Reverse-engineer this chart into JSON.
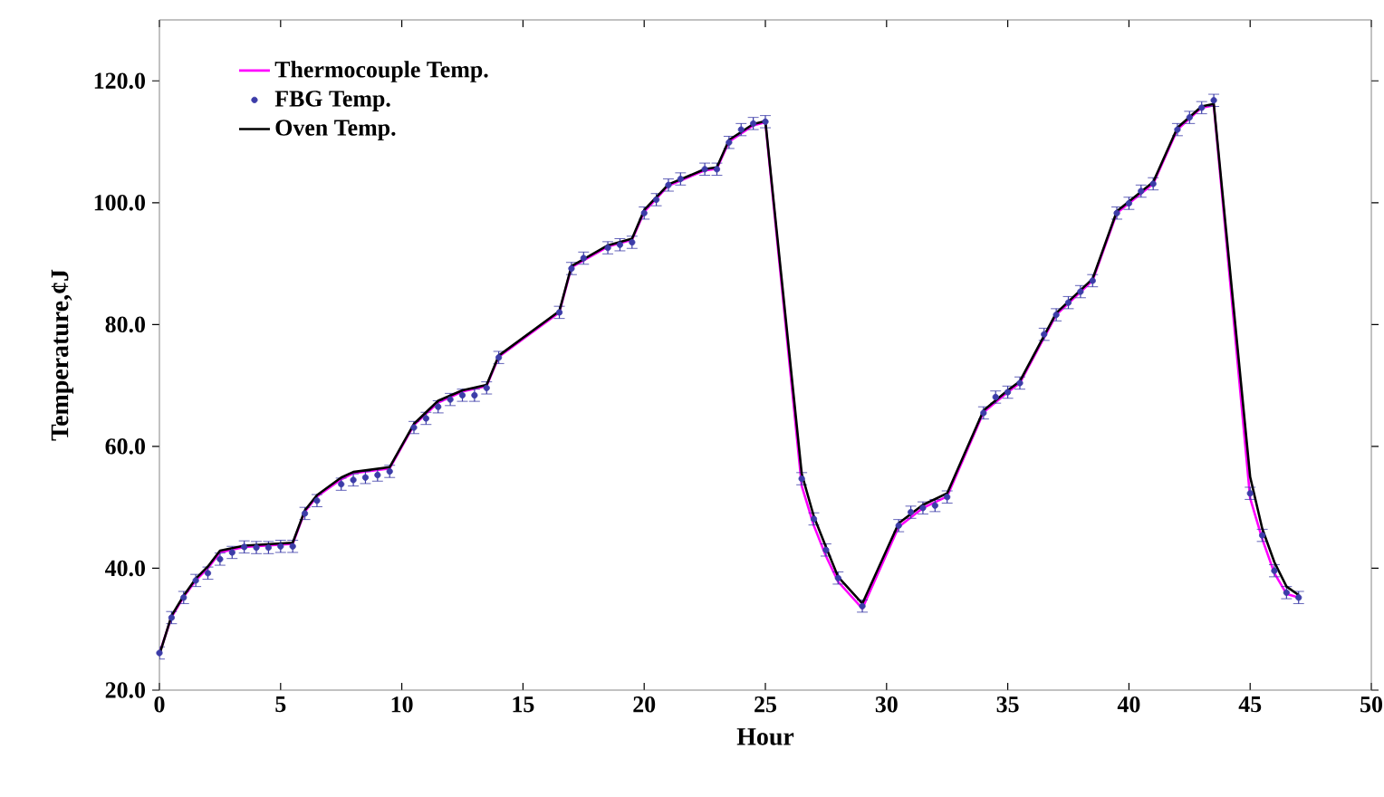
{
  "chart_data": {
    "type": "line",
    "xlabel": "Hour",
    "ylabel": "Temperature,¢J",
    "xlim": [
      0,
      50
    ],
    "ylim": [
      20,
      130
    ],
    "xticks": [
      0,
      5,
      10,
      15,
      20,
      25,
      30,
      35,
      40,
      45,
      50
    ],
    "yticks": [
      {
        "value": 20,
        "label": "20.0"
      },
      {
        "value": 40,
        "label": "40.0"
      },
      {
        "value": 60,
        "label": "60.0"
      },
      {
        "value": 80,
        "label": "80.0"
      },
      {
        "value": 100,
        "label": "100.0"
      },
      {
        "value": 120,
        "label": "120.0"
      }
    ],
    "grid": false,
    "legend": "top left",
    "series": [
      {
        "name": "Thermocouple Temp.",
        "color": "#ff00ff",
        "line_style": "solid",
        "marker": "none",
        "x": [
          0,
          0.5,
          1,
          1.5,
          2,
          2.5,
          3.5,
          5.5,
          6,
          6.5,
          7.5,
          8,
          9.5,
          10.5,
          11.5,
          12.5,
          13.5,
          14,
          16.5,
          17,
          18.5,
          19.5,
          20,
          21,
          22.5,
          23,
          23.5,
          24.5,
          25,
          26.5,
          27,
          27.5,
          28,
          29,
          30.5,
          31.5,
          32.5,
          34,
          35,
          35.5,
          37,
          38.5,
          39.5,
          41,
          42,
          43,
          43.5,
          45,
          45.5,
          46,
          46.5,
          47
        ],
        "values": [
          26.0,
          32.0,
          35.3,
          38.0,
          40.0,
          42.6,
          43.5,
          44.0,
          49.3,
          51.8,
          54.6,
          55.6,
          56.4,
          63.5,
          67.2,
          69.0,
          69.9,
          74.7,
          82.0,
          89.4,
          92.8,
          93.9,
          98.5,
          102.8,
          105.3,
          105.6,
          110.0,
          112.7,
          113.2,
          53.5,
          47.0,
          42.0,
          37.8,
          33.4,
          46.8,
          49.9,
          51.8,
          65.6,
          68.9,
          70.4,
          81.6,
          87.2,
          98.3,
          103.1,
          112.0,
          115.6,
          116.0,
          51.5,
          44.8,
          39.2,
          35.8,
          35.2
        ]
      },
      {
        "name": "FBG Temp.",
        "type": "scatter",
        "color": "#3c3ca8",
        "marker": "circle",
        "x": [
          0,
          0.5,
          1,
          1.5,
          2,
          2.5,
          3,
          3.5,
          4,
          4.5,
          5,
          5.5,
          6,
          6.5,
          7.5,
          8,
          8.5,
          9,
          9.5,
          10.5,
          11,
          11.5,
          12,
          12.5,
          13,
          13.5,
          14,
          16.5,
          17,
          17.5,
          18.5,
          19,
          19.5,
          20,
          20.5,
          21,
          21.5,
          22.5,
          23,
          23.5,
          24,
          24.5,
          25,
          26.5,
          27,
          27.5,
          28,
          29,
          30.5,
          31,
          31.5,
          32,
          32.5,
          34,
          34.5,
          35,
          35.5,
          36.5,
          37,
          37.5,
          38,
          38.5,
          39.5,
          40,
          40.5,
          41,
          42,
          42.5,
          43,
          43.5,
          45,
          45.5,
          46,
          46.5,
          47
        ],
        "values": [
          26.1,
          31.9,
          35.2,
          38.0,
          39.2,
          41.5,
          42.6,
          43.5,
          43.4,
          43.4,
          43.6,
          43.6,
          49.0,
          51.1,
          53.8,
          54.5,
          54.9,
          55.3,
          55.9,
          63.1,
          64.6,
          66.5,
          67.7,
          68.4,
          68.4,
          69.6,
          74.6,
          82.0,
          89.2,
          90.9,
          92.6,
          93.1,
          93.5,
          98.3,
          100.5,
          102.9,
          103.9,
          105.5,
          105.5,
          109.9,
          112.0,
          113.0,
          113.3,
          54.7,
          48.1,
          43.0,
          38.4,
          33.8,
          47.0,
          49.2,
          49.9,
          50.3,
          51.7,
          65.5,
          68.1,
          68.9,
          70.4,
          78.4,
          81.6,
          83.6,
          85.4,
          87.2,
          98.3,
          99.9,
          101.9,
          103.1,
          112.0,
          114.0,
          115.6,
          116.8,
          52.3,
          45.4,
          39.6,
          36.0,
          35.2
        ],
        "errors": [
          1,
          1,
          1,
          1,
          1,
          1,
          1,
          1,
          1,
          1,
          1,
          1,
          1,
          1,
          1,
          1,
          1,
          1,
          1,
          1,
          1,
          1,
          1,
          1,
          1,
          1,
          1,
          1,
          1,
          1,
          1,
          1,
          1,
          1,
          1,
          1,
          1,
          1,
          1,
          1,
          1,
          1,
          1,
          1,
          1,
          1,
          1,
          1,
          1,
          1,
          1,
          1,
          1,
          1,
          1,
          1,
          1,
          1,
          1,
          1,
          1,
          1,
          1,
          1,
          1,
          1,
          1,
          1,
          1,
          1,
          1,
          1,
          1,
          1,
          1
        ]
      },
      {
        "name": "Oven Temp.",
        "color": "#000000",
        "line_style": "solid",
        "marker": "none",
        "x": [
          0,
          0.5,
          1,
          1.5,
          2,
          2.5,
          3.5,
          5.5,
          6,
          6.5,
          7.5,
          8,
          9.5,
          10.5,
          11.5,
          12.5,
          13.5,
          14,
          16.5,
          17,
          18.5,
          19.5,
          20,
          21,
          22.5,
          23,
          23.5,
          24.5,
          25,
          26.5,
          27,
          27.5,
          28,
          29,
          30.5,
          31.5,
          32.5,
          34,
          35,
          35.5,
          37,
          38.5,
          39.5,
          41,
          42,
          43,
          43.5,
          45,
          45.5,
          46,
          46.5,
          47
        ],
        "values": [
          25.8,
          32.2,
          35.5,
          38.3,
          40.3,
          42.9,
          43.7,
          44.2,
          49.5,
          52.0,
          54.9,
          55.8,
          56.6,
          63.7,
          67.5,
          69.2,
          70.1,
          74.9,
          82.2,
          89.6,
          93.0,
          94.1,
          98.8,
          103.0,
          105.5,
          105.8,
          110.3,
          112.9,
          113.4,
          55.5,
          48.5,
          43.5,
          38.6,
          34.2,
          47.4,
          50.4,
          52.3,
          65.9,
          69.2,
          70.7,
          81.9,
          87.5,
          98.6,
          103.4,
          112.3,
          115.8,
          116.2,
          55.0,
          46.5,
          41.0,
          37.0,
          35.6
        ]
      }
    ]
  }
}
